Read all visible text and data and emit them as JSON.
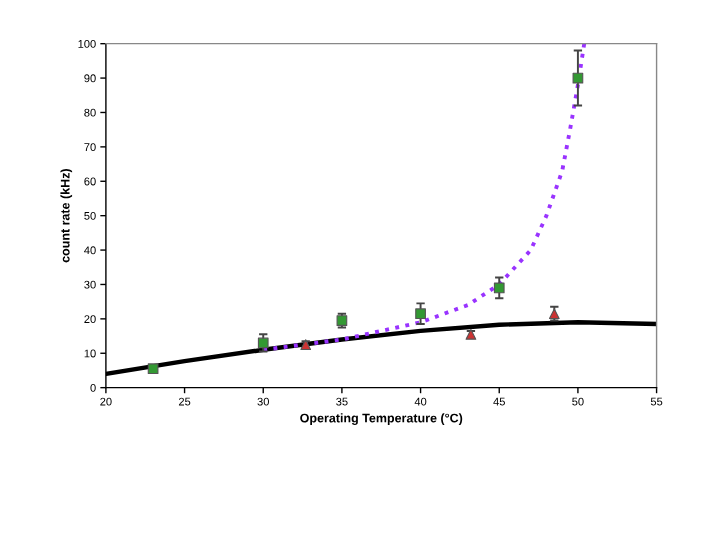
{
  "chart_data": {
    "type": "scatter",
    "xlabel": "Operating Temperature (°C)",
    "ylabel": "count rate (kHz)",
    "xlim": [
      20,
      55
    ],
    "xticks": [
      20,
      25,
      30,
      35,
      40,
      45,
      50,
      55
    ],
    "ylim": [
      0,
      100
    ],
    "yticks": [
      0,
      10,
      20,
      30,
      40,
      50,
      60,
      70,
      80,
      90,
      100
    ],
    "grid": false,
    "legend": false,
    "series": [
      {
        "type": "line",
        "color": "#000000",
        "line_style": "solid",
        "marker": "none",
        "x": [
          20,
          25,
          30,
          35,
          40,
          45,
          50,
          55
        ],
        "values": [
          4,
          7.7,
          11,
          14,
          16.5,
          18.3,
          19,
          18.5
        ]
      },
      {
        "type": "line",
        "color": "#9933ff",
        "line_style": "dotted",
        "marker": "none",
        "x": [
          30,
          35,
          40,
          43,
          45,
          47,
          48,
          49,
          49.5,
          50,
          50.4
        ],
        "values": [
          11,
          14,
          19,
          24,
          30,
          40,
          50,
          63,
          75,
          88,
          100
        ]
      },
      {
        "color": "#339933",
        "marker": "square",
        "x": [
          23,
          30,
          35,
          40,
          45,
          50
        ],
        "values": [
          5.5,
          13,
          19.5,
          21.5,
          29,
          90
        ],
        "errors": [
          1,
          2.5,
          2,
          3,
          3,
          8
        ]
      },
      {
        "color": "#cc3333",
        "marker": "triangle",
        "x": [
          32.7,
          43.2,
          48.5
        ],
        "values": [
          12.5,
          15.5,
          21.5
        ],
        "errors": [
          1,
          1,
          2
        ]
      }
    ]
  }
}
